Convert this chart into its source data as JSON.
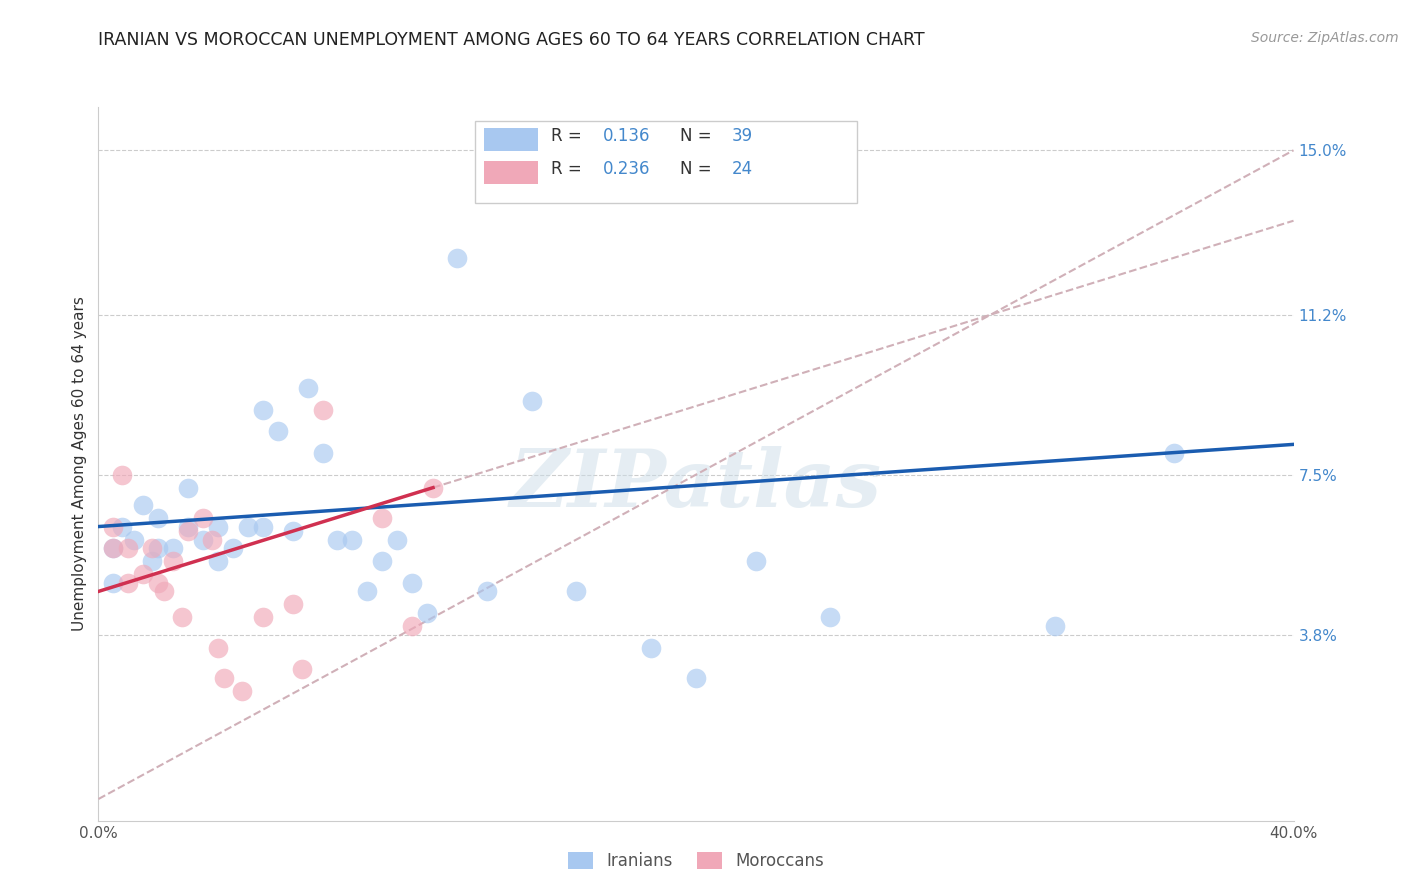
{
  "title": "IRANIAN VS MOROCCAN UNEMPLOYMENT AMONG AGES 60 TO 64 YEARS CORRELATION CHART",
  "source": "Source: ZipAtlas.com",
  "ylabel": "Unemployment Among Ages 60 to 64 years",
  "xlim": [
    0.0,
    0.4
  ],
  "ylim": [
    -0.005,
    0.16
  ],
  "y_ticks_right": [
    0.038,
    0.075,
    0.112,
    0.15
  ],
  "y_tick_labels_right": [
    "3.8%",
    "7.5%",
    "11.2%",
    "15.0%"
  ],
  "watermark": "ZIPatlas",
  "iranian_color": "#a8c8f0",
  "moroccan_color": "#f0a8b8",
  "iranian_R": "0.136",
  "iranian_N": "39",
  "moroccan_R": "0.236",
  "moroccan_N": "24",
  "blue_line_color": "#1a5cb0",
  "pink_line_color": "#d03050",
  "dashed_line_color": "#d0b0b8",
  "iranians_x": [
    0.005,
    0.005,
    0.008,
    0.012,
    0.015,
    0.018,
    0.02,
    0.02,
    0.025,
    0.03,
    0.03,
    0.035,
    0.04,
    0.04,
    0.045,
    0.05,
    0.055,
    0.055,
    0.06,
    0.065,
    0.07,
    0.075,
    0.08,
    0.085,
    0.09,
    0.095,
    0.1,
    0.105,
    0.11,
    0.12,
    0.13,
    0.145,
    0.16,
    0.185,
    0.2,
    0.22,
    0.245,
    0.32,
    0.36
  ],
  "iranians_y": [
    0.05,
    0.058,
    0.063,
    0.06,
    0.068,
    0.055,
    0.058,
    0.065,
    0.058,
    0.063,
    0.072,
    0.06,
    0.055,
    0.063,
    0.058,
    0.063,
    0.09,
    0.063,
    0.085,
    0.062,
    0.095,
    0.08,
    0.06,
    0.06,
    0.048,
    0.055,
    0.06,
    0.05,
    0.043,
    0.125,
    0.048,
    0.092,
    0.048,
    0.035,
    0.028,
    0.055,
    0.042,
    0.04,
    0.08
  ],
  "moroccans_x": [
    0.005,
    0.005,
    0.008,
    0.01,
    0.01,
    0.015,
    0.018,
    0.02,
    0.022,
    0.025,
    0.028,
    0.03,
    0.035,
    0.038,
    0.04,
    0.042,
    0.048,
    0.055,
    0.065,
    0.068,
    0.075,
    0.095,
    0.105,
    0.112
  ],
  "moroccans_y": [
    0.058,
    0.063,
    0.075,
    0.058,
    0.05,
    0.052,
    0.058,
    0.05,
    0.048,
    0.055,
    0.042,
    0.062,
    0.065,
    0.06,
    0.035,
    0.028,
    0.025,
    0.042,
    0.045,
    0.03,
    0.09,
    0.065,
    0.04,
    0.072
  ],
  "blue_line_x0": 0.0,
  "blue_line_y0": 0.063,
  "blue_line_x1": 0.4,
  "blue_line_y1": 0.082,
  "pink_line_x0": 0.0,
  "pink_line_y0": 0.048,
  "pink_line_x1": 0.112,
  "pink_line_y1": 0.072
}
